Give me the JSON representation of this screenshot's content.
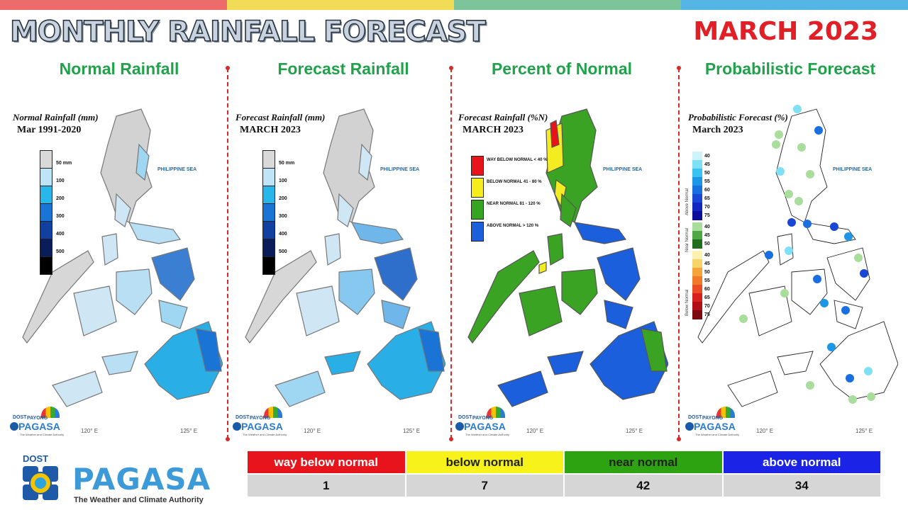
{
  "slide": {
    "title": "MONTHLY RAINFALL FORECAST",
    "month": "MARCH 2023",
    "month_color": "#e01f26",
    "top_bar_colors": [
      "#ee6b6b",
      "#f3dc55",
      "#7cc49a",
      "#55b6e6"
    ]
  },
  "panels": [
    {
      "heading": "Normal Rainfall",
      "map_caption": "Normal Rainfall (mm)",
      "map_subtitle": "Mar 1991-2020",
      "sea_label": "PHILIPPINE SEA",
      "lon_left": "120° E",
      "lon_right": "125° E",
      "legend": [
        {
          "label": "50 mm",
          "color": "#d9d9d9"
        },
        {
          "label": "100",
          "color": "#bfe3f7"
        },
        {
          "label": "200",
          "color": "#29b6ea"
        },
        {
          "label": "300",
          "color": "#1a74d6"
        },
        {
          "label": "400",
          "color": "#1240a0"
        },
        {
          "label": "500",
          "color": "#0a1d5a"
        },
        {
          "label": "",
          "color": "#000000"
        }
      ]
    },
    {
      "heading": "Forecast Rainfall",
      "map_caption": "Forecast Rainfall (mm)",
      "map_subtitle": "MARCH 2023",
      "sea_label": "PHILIPPINE SEA",
      "lon_left": "120° E",
      "lon_right": "125° E",
      "legend": [
        {
          "label": "50 mm",
          "color": "#d9d9d9"
        },
        {
          "label": "100",
          "color": "#bfe3f7"
        },
        {
          "label": "200",
          "color": "#29b6ea"
        },
        {
          "label": "300",
          "color": "#1a74d6"
        },
        {
          "label": "400",
          "color": "#1240a0"
        },
        {
          "label": "500",
          "color": "#0a1d5a"
        },
        {
          "label": "",
          "color": "#000000"
        }
      ]
    },
    {
      "heading": "Percent of Normal",
      "map_caption": "Forecast Rainfall (%N)",
      "map_subtitle": "MARCH 2023",
      "sea_label": "PHILIPPINE SEA",
      "lon_left": "120° E",
      "lon_right": "125° E",
      "legend": [
        {
          "label": "WAY BELOW NORMAL < 40 %",
          "color": "#e8141c"
        },
        {
          "label": "BELOW NORMAL 41 - 80 %",
          "color": "#f5ee1c"
        },
        {
          "label": "NEAR NORMAL 81 - 120 %",
          "color": "#36a51f"
        },
        {
          "label": "ABOVE NORMAL > 120 %",
          "color": "#1c5fdc"
        }
      ]
    },
    {
      "heading": "Probabilistic Forecast",
      "map_caption": "Probabilistic Forecast (%)",
      "map_subtitle": "March 2023",
      "sea_label": "PHILIPPINE SEA",
      "lon_left": "120° E",
      "lon_right": "125° E",
      "legend_groups": [
        {
          "name": "Above Normal",
          "items": [
            {
              "label": "40",
              "color": "#cdf3fb"
            },
            {
              "label": "45",
              "color": "#7fe0f5"
            },
            {
              "label": "50",
              "color": "#38c3ef"
            },
            {
              "label": "55",
              "color": "#1e96e6"
            },
            {
              "label": "60",
              "color": "#1a6fe0"
            },
            {
              "label": "65",
              "color": "#1a46d6"
            },
            {
              "label": "70",
              "color": "#1426c0"
            },
            {
              "label": "75",
              "color": "#0d0f9a"
            }
          ]
        },
        {
          "name": "Near Normal",
          "items": [
            {
              "label": "40",
              "color": "#a9dd9c"
            },
            {
              "label": "45",
              "color": "#4ea844"
            },
            {
              "label": "50",
              "color": "#1f6e20"
            }
          ]
        },
        {
          "name": "Below Normal",
          "items": [
            {
              "label": "40",
              "color": "#fbf1b1"
            },
            {
              "label": "45",
              "color": "#f8d36a"
            },
            {
              "label": "50",
              "color": "#f5a43a"
            },
            {
              "label": "55",
              "color": "#f07a28"
            },
            {
              "label": "60",
              "color": "#ea4c23"
            },
            {
              "label": "65",
              "color": "#d8201e"
            },
            {
              "label": "70",
              "color": "#b10f16"
            },
            {
              "label": "75",
              "color": "#7c0a0f"
            }
          ]
        }
      ]
    }
  ],
  "panel_heading_color": "#1fa24a",
  "mini_logo": {
    "dost": "DOST",
    "payong": "PAYONG",
    "pagasa": "PAGASA",
    "tagline": "The Weather and Climate Authority"
  },
  "summary": {
    "categories": [
      {
        "label": "way below normal",
        "count": "1",
        "bg": "#e8141c",
        "fg": "#ffffff"
      },
      {
        "label": "below normal",
        "count": "7",
        "bg": "#f7f21a",
        "fg": "#222222"
      },
      {
        "label": "near normal",
        "count": "42",
        "bg": "#2ea312",
        "fg": "#222222"
      },
      {
        "label": "above normal",
        "count": "34",
        "bg": "#1b23e6",
        "fg": "#ffffff"
      }
    ]
  },
  "logo": {
    "dost": "DOST",
    "wordmark": "PAGASA",
    "tagline": "The Weather and Climate Authority"
  }
}
